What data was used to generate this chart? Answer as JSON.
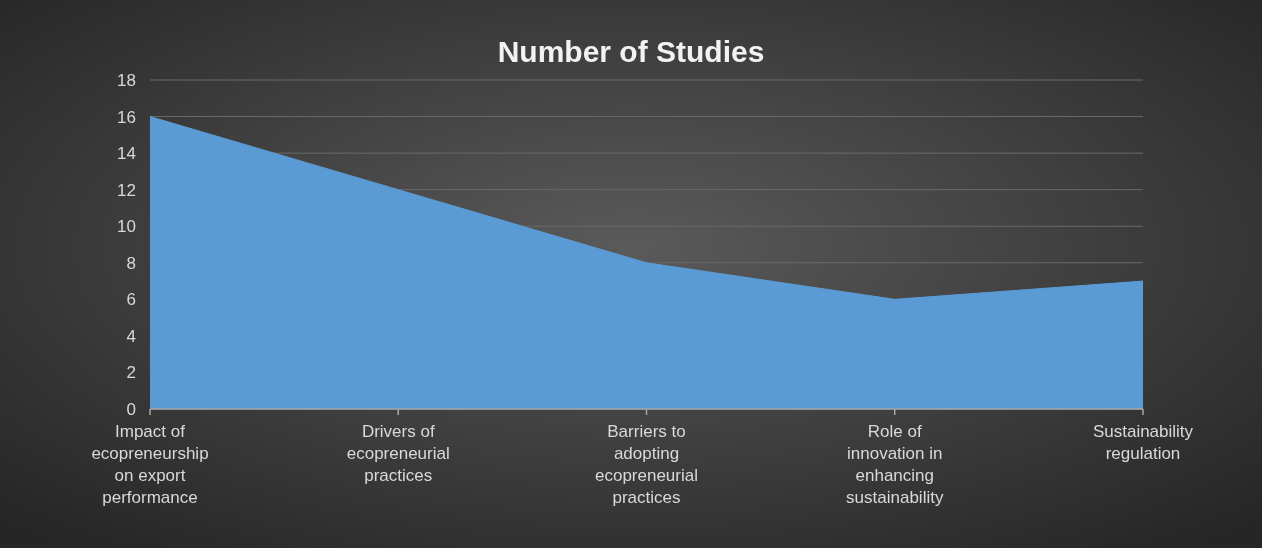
{
  "chart_data": {
    "type": "area",
    "title": "Number of Studies",
    "categories": [
      "Impact of ecopreneurship on export performance",
      "Drivers of ecopreneurial practices",
      "Barriers to adopting ecopreneurial practices",
      "Role of innovation in enhancing sustainability",
      "Sustainability regulation"
    ],
    "series": [
      {
        "color": "#5b9bd5",
        "values": [
          16,
          12,
          8,
          6,
          7
        ]
      }
    ],
    "ylim": [
      0,
      18
    ],
    "yticks": [
      0,
      2,
      4,
      6,
      8,
      10,
      12,
      14,
      16,
      18
    ],
    "grid": "y"
  }
}
